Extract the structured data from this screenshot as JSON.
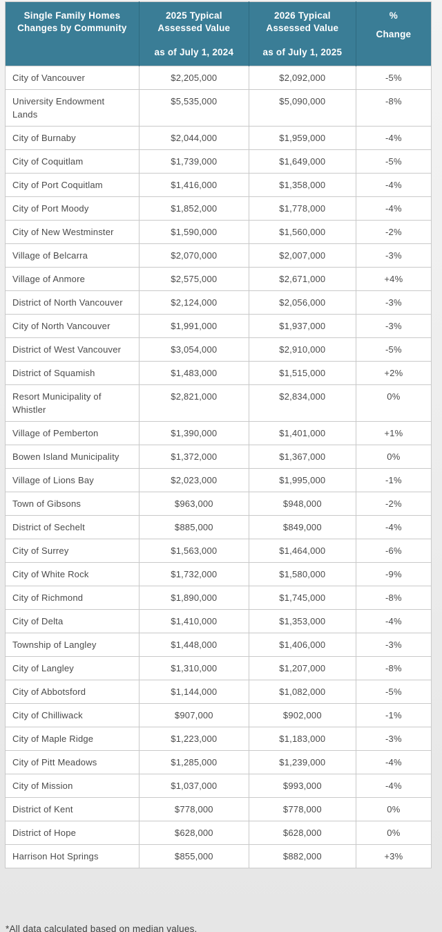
{
  "page": {
    "footnote": "*All data calculated based on median values."
  },
  "colors": {
    "header_bg": "#3a7d96",
    "header_divider": "#2e6a80",
    "row_border": "#c9c9c9",
    "text": "#4a4a4a",
    "header_text": "#ffffff"
  },
  "chart_data": {
    "type": "table",
    "title": "Single Family Homes Changes by Community",
    "columns": [
      {
        "id": "community",
        "main": "Single Family Homes Changes by Community",
        "sub": ""
      },
      {
        "id": "v2025",
        "main": "2025 Typical Assessed Value",
        "sub": "as of July 1, 2024"
      },
      {
        "id": "v2026",
        "main": "2026 Typical Assessed Value",
        "sub": "as of July 1, 2025"
      },
      {
        "id": "change",
        "main": "%",
        "sub": "Change"
      }
    ],
    "rows": [
      {
        "community": "City of Vancouver",
        "v2025": "$2,205,000",
        "v2026": "$2,092,000",
        "change": "-5%"
      },
      {
        "community": "University Endowment Lands",
        "v2025": "$5,535,000",
        "v2026": "$5,090,000",
        "change": "-8%"
      },
      {
        "community": "City of Burnaby",
        "v2025": "$2,044,000",
        "v2026": "$1,959,000",
        "change": "-4%"
      },
      {
        "community": "City of Coquitlam",
        "v2025": "$1,739,000",
        "v2026": "$1,649,000",
        "change": "-5%"
      },
      {
        "community": "City of Port Coquitlam",
        "v2025": "$1,416,000",
        "v2026": "$1,358,000",
        "change": "-4%"
      },
      {
        "community": "City of Port Moody",
        "v2025": "$1,852,000",
        "v2026": "$1,778,000",
        "change": "-4%"
      },
      {
        "community": "City of New Westminster",
        "v2025": "$1,590,000",
        "v2026": "$1,560,000",
        "change": "-2%"
      },
      {
        "community": "Village of Belcarra",
        "v2025": "$2,070,000",
        "v2026": "$2,007,000",
        "change": "-3%"
      },
      {
        "community": "Village of Anmore",
        "v2025": "$2,575,000",
        "v2026": "$2,671,000",
        "change": "+4%"
      },
      {
        "community": "District of North Vancouver",
        "v2025": "$2,124,000",
        "v2026": "$2,056,000",
        "change": "-3%"
      },
      {
        "community": "City of North Vancouver",
        "v2025": "$1,991,000",
        "v2026": "$1,937,000",
        "change": "-3%"
      },
      {
        "community": "District of West Vancouver",
        "v2025": "$3,054,000",
        "v2026": "$2,910,000",
        "change": "-5%"
      },
      {
        "community": "District of Squamish",
        "v2025": "$1,483,000",
        "v2026": "$1,515,000",
        "change": "+2%"
      },
      {
        "community": "Resort Municipality of Whistler",
        "v2025": "$2,821,000",
        "v2026": "$2,834,000",
        "change": "0%"
      },
      {
        "community": "Village of Pemberton",
        "v2025": "$1,390,000",
        "v2026": "$1,401,000",
        "change": "+1%"
      },
      {
        "community": "Bowen Island Municipality",
        "v2025": "$1,372,000",
        "v2026": "$1,367,000",
        "change": "0%"
      },
      {
        "community": "Village of Lions Bay",
        "v2025": "$2,023,000",
        "v2026": "$1,995,000",
        "change": "-1%"
      },
      {
        "community": "Town of Gibsons",
        "v2025": "$963,000",
        "v2026": "$948,000",
        "change": "-2%"
      },
      {
        "community": "District of Sechelt",
        "v2025": "$885,000",
        "v2026": "$849,000",
        "change": "-4%"
      },
      {
        "community": "City of Surrey",
        "v2025": "$1,563,000",
        "v2026": "$1,464,000",
        "change": "-6%"
      },
      {
        "community": "City of White Rock",
        "v2025": "$1,732,000",
        "v2026": "$1,580,000",
        "change": "-9%"
      },
      {
        "community": "City of Richmond",
        "v2025": "$1,890,000",
        "v2026": "$1,745,000",
        "change": "-8%"
      },
      {
        "community": "City of Delta",
        "v2025": "$1,410,000",
        "v2026": "$1,353,000",
        "change": "-4%"
      },
      {
        "community": "Township of Langley",
        "v2025": "$1,448,000",
        "v2026": "$1,406,000",
        "change": "-3%"
      },
      {
        "community": "City of Langley",
        "v2025": "$1,310,000",
        "v2026": "$1,207,000",
        "change": "-8%"
      },
      {
        "community": "City of Abbotsford",
        "v2025": "$1,144,000",
        "v2026": "$1,082,000",
        "change": "-5%"
      },
      {
        "community": "City of Chilliwack",
        "v2025": "$907,000",
        "v2026": "$902,000",
        "change": "-1%"
      },
      {
        "community": "City of Maple Ridge",
        "v2025": "$1,223,000",
        "v2026": "$1,183,000",
        "change": "-3%"
      },
      {
        "community": "City of Pitt Meadows",
        "v2025": "$1,285,000",
        "v2026": "$1,239,000",
        "change": "-4%"
      },
      {
        "community": "City of Mission",
        "v2025": "$1,037,000",
        "v2026": "$993,000",
        "change": "-4%"
      },
      {
        "community": "District of Kent",
        "v2025": "$778,000",
        "v2026": "$778,000",
        "change": "0%"
      },
      {
        "community": "District of Hope",
        "v2025": "$628,000",
        "v2026": "$628,000",
        "change": "0%"
      },
      {
        "community": "Harrison Hot Springs",
        "v2025": "$855,000",
        "v2026": "$882,000",
        "change": "+3%"
      }
    ]
  }
}
